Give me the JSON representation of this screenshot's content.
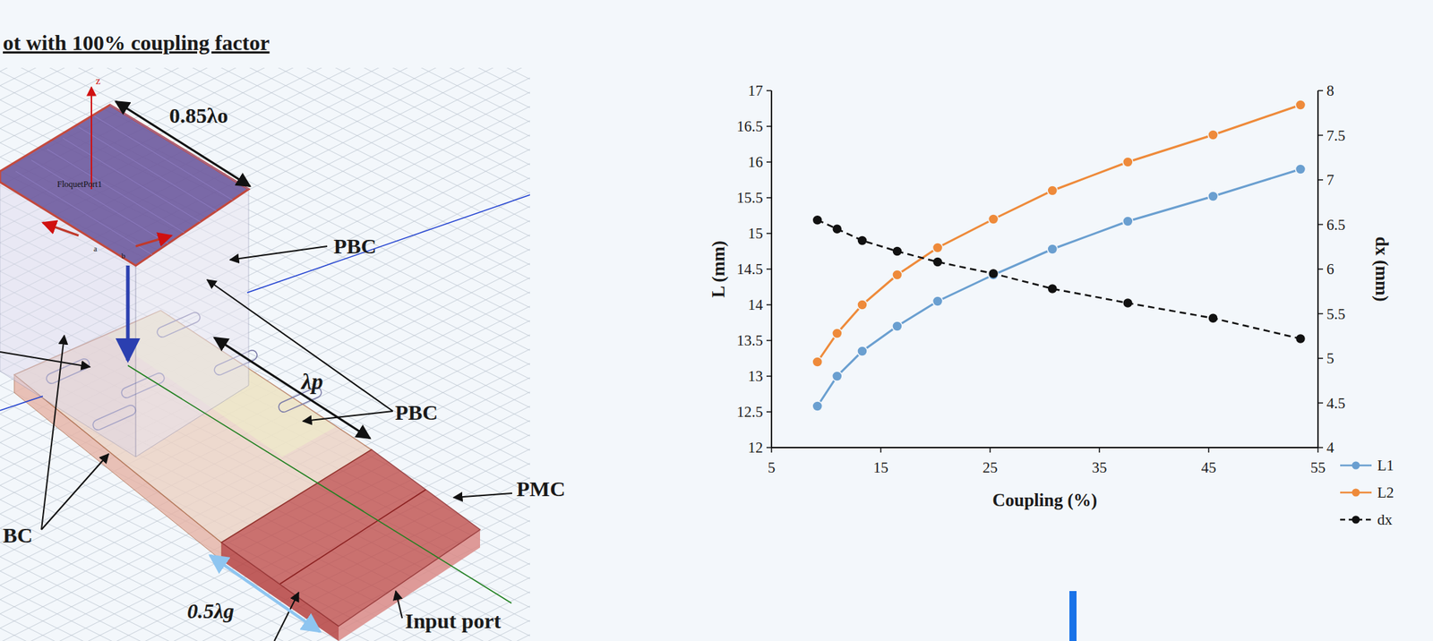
{
  "chart_data": {
    "type": "line",
    "x_label": "Coupling (%)",
    "y_label": "L (mm)",
    "y2_label": "dx (mm)",
    "x": [
      9.2,
      11,
      13.3,
      16.5,
      20.2,
      25.3,
      30.7,
      37.6,
      45.4,
      53.4
    ],
    "series": [
      {
        "name": "L1",
        "color": "#6a9fd0",
        "marker": "circle",
        "line_style": "solid",
        "values": [
          12.58,
          13.0,
          13.35,
          13.7,
          14.05,
          14.42,
          14.78,
          15.17,
          15.52,
          15.9
        ]
      },
      {
        "name": "L2",
        "color": "#ee8a3a",
        "marker": "circle",
        "line_style": "solid",
        "values": [
          13.2,
          13.6,
          14.0,
          14.42,
          14.8,
          15.2,
          15.6,
          16.0,
          16.38,
          16.8
        ]
      },
      {
        "name": "dx",
        "color": "#111111",
        "marker": "circle",
        "line_style": "dashed",
        "axis": "y2",
        "values": [
          6.55,
          6.45,
          6.32,
          6.2,
          6.08,
          5.95,
          5.78,
          5.62,
          5.45,
          5.22
        ]
      }
    ],
    "xlim": [
      5,
      55
    ],
    "xticks": [
      5,
      15,
      25,
      35,
      45,
      55
    ],
    "ylim": [
      12,
      17
    ],
    "yticks": [
      12,
      12.5,
      13,
      13.5,
      14,
      14.5,
      15,
      15.5,
      16,
      16.5,
      17
    ],
    "y2lim": [
      4,
      8
    ],
    "y2ticks": [
      4,
      4.5,
      5,
      5.5,
      6,
      6.5,
      7,
      7.5,
      8
    ],
    "grid": false,
    "legend": "right"
  },
  "diagram": {
    "title": "ot with 100% coupling factor",
    "labels": [
      "0.85λo",
      "FloquetPort1",
      "PBC",
      "λp",
      "PBC",
      "PMC",
      "BC",
      "0.5λg",
      "Input port",
      "z",
      "a",
      "b"
    ]
  }
}
